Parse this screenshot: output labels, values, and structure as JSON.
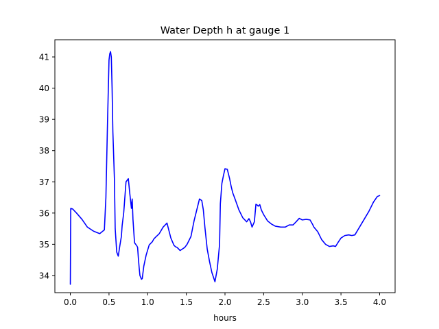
{
  "chart_data": {
    "type": "line",
    "title": "Water Depth h at gauge 1",
    "xlabel": "hours",
    "ylabel": "",
    "xlim": [
      -0.2,
      4.2
    ],
    "ylim": [
      33.45,
      41.55
    ],
    "x_ticks": [
      0.0,
      0.5,
      1.0,
      1.5,
      2.0,
      2.5,
      3.0,
      3.5,
      4.0
    ],
    "x_tick_labels": [
      "0.0",
      "0.5",
      "1.0",
      "1.5",
      "2.0",
      "2.5",
      "3.0",
      "3.5",
      "4.0"
    ],
    "y_ticks": [
      34,
      35,
      36,
      37,
      38,
      39,
      40,
      41
    ],
    "y_tick_labels": [
      "34",
      "35",
      "36",
      "37",
      "38",
      "39",
      "40",
      "41"
    ],
    "grid": false,
    "color": "#0000ff",
    "series": [
      {
        "x": [
          0.0,
          0.005,
          0.03,
          0.08,
          0.15,
          0.22,
          0.3,
          0.38,
          0.44,
          0.46,
          0.48,
          0.5,
          0.51,
          0.52,
          0.53,
          0.54,
          0.55,
          0.57,
          0.58,
          0.6,
          0.62,
          0.64,
          0.66,
          0.67,
          0.69,
          0.72,
          0.75,
          0.77,
          0.79,
          0.8,
          0.81,
          0.83,
          0.86,
          0.87,
          0.88,
          0.89,
          0.9,
          0.92,
          0.93,
          0.95,
          0.98,
          1.02,
          1.06,
          1.08,
          1.1,
          1.15,
          1.2,
          1.25,
          1.3,
          1.34,
          1.36,
          1.38,
          1.42,
          1.48,
          1.51,
          1.56,
          1.6,
          1.64,
          1.67,
          1.7,
          1.72,
          1.74,
          1.77,
          1.8,
          1.83,
          1.87,
          1.9,
          1.93,
          1.94,
          1.96,
          1.98,
          2.0,
          2.03,
          2.06,
          2.08,
          2.1,
          2.13,
          2.18,
          2.23,
          2.28,
          2.31,
          2.33,
          2.35,
          2.38,
          2.4,
          2.42,
          2.43,
          2.45,
          2.47,
          2.5,
          2.55,
          2.6,
          2.65,
          2.72,
          2.78,
          2.83,
          2.88,
          2.92,
          2.96,
          3.0,
          3.05,
          3.1,
          3.13,
          3.15,
          3.2,
          3.25,
          3.3,
          3.35,
          3.4,
          3.43,
          3.46,
          3.5,
          3.55,
          3.6,
          3.64,
          3.68,
          3.74,
          3.8,
          3.86,
          3.92,
          3.97,
          4.0
        ],
        "y": [
          33.72,
          36.15,
          36.13,
          36.0,
          35.8,
          35.55,
          35.42,
          35.34,
          35.46,
          36.5,
          38.8,
          40.9,
          41.1,
          41.17,
          41.0,
          40.0,
          38.6,
          37.1,
          35.5,
          34.75,
          34.62,
          34.95,
          35.25,
          35.6,
          36.0,
          37.0,
          37.1,
          36.6,
          36.15,
          36.45,
          35.8,
          35.05,
          34.95,
          34.9,
          34.55,
          34.25,
          34.0,
          33.88,
          33.9,
          34.3,
          34.65,
          34.98,
          35.08,
          35.17,
          35.22,
          35.34,
          35.55,
          35.68,
          35.2,
          34.97,
          34.92,
          34.9,
          34.8,
          34.9,
          35.0,
          35.25,
          35.75,
          36.15,
          36.45,
          36.4,
          36.1,
          35.55,
          34.85,
          34.45,
          34.1,
          33.8,
          34.2,
          35.0,
          36.3,
          36.95,
          37.2,
          37.42,
          37.4,
          37.1,
          36.85,
          36.65,
          36.45,
          36.1,
          35.85,
          35.72,
          35.82,
          35.72,
          35.55,
          35.72,
          36.28,
          36.25,
          36.22,
          36.27,
          36.1,
          35.95,
          35.75,
          35.65,
          35.58,
          35.55,
          35.55,
          35.62,
          35.62,
          35.72,
          35.83,
          35.78,
          35.8,
          35.78,
          35.65,
          35.55,
          35.4,
          35.15,
          35.0,
          34.93,
          34.95,
          34.93,
          35.05,
          35.2,
          35.28,
          35.3,
          35.28,
          35.3,
          35.55,
          35.8,
          36.05,
          36.35,
          36.53,
          36.56
        ]
      }
    ]
  }
}
